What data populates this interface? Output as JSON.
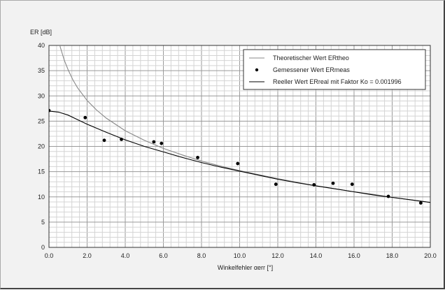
{
  "chart_data": {
    "type": "line",
    "ylabel": "ER [dB]",
    "xlabel": "Winkelfehler αerr [°]",
    "xlim": [
      0,
      20
    ],
    "ylim": [
      0,
      40
    ],
    "x_ticks": [
      "0.0",
      "2.0",
      "4.0",
      "6.0",
      "8.0",
      "10.0",
      "12.0",
      "14.0",
      "16.0",
      "18.0",
      "20.0"
    ],
    "y_ticks": [
      "0",
      "5",
      "10",
      "15",
      "20",
      "25",
      "30",
      "35",
      "40"
    ],
    "grid": true,
    "legend_position": "top-right",
    "legend": [
      "Theoretischer Wert ERtheo",
      "Gemessener Wert ERmeas",
      "Reeller Wert ERreal mit Faktor Ko = 0.001996"
    ],
    "series": [
      {
        "name": "Theoretischer Wert ERtheo",
        "style": "line",
        "color": "#888888",
        "x": [
          0.5,
          0.6,
          0.8,
          1.0,
          1.25,
          1.5,
          2.0,
          2.5,
          3.0,
          4.0,
          5.0,
          6.0,
          7.0,
          8.0,
          9.0,
          10.0,
          11.0,
          12.0,
          13.0,
          14.0,
          15.0,
          16.0,
          17.0,
          18.0,
          19.0,
          20.0
        ],
        "y": [
          41.2,
          39.6,
          37.1,
          35.2,
          33.2,
          31.6,
          29.1,
          27.2,
          25.6,
          23.1,
          21.2,
          19.6,
          18.3,
          17.1,
          16.1,
          15.2,
          14.4,
          13.6,
          12.9,
          12.2,
          11.6,
          11.0,
          10.5,
          9.9,
          9.4,
          8.9
        ]
      },
      {
        "name": "Gemessener Wert ERmeas",
        "style": "points",
        "color": "#000000",
        "x": [
          0.0,
          1.9,
          2.9,
          3.8,
          5.5,
          5.9,
          7.8,
          9.9,
          11.9,
          13.9,
          14.9,
          15.9,
          17.8,
          19.5
        ],
        "y": [
          27.1,
          25.7,
          21.2,
          21.4,
          20.9,
          20.6,
          17.8,
          16.6,
          12.5,
          12.4,
          12.7,
          12.5,
          10.1,
          8.8
        ]
      },
      {
        "name": "Reeller Wert ERreal mit Faktor Ko = 0.001996",
        "style": "line",
        "color": "#000000",
        "x": [
          0.0,
          0.5,
          1.0,
          1.5,
          2.0,
          2.5,
          3.0,
          4.0,
          5.0,
          6.0,
          7.0,
          8.0,
          9.0,
          10.0,
          11.0,
          12.0,
          13.0,
          14.0,
          15.0,
          16.0,
          17.0,
          18.0,
          19.0,
          20.0
        ],
        "y": [
          27.0,
          26.8,
          26.2,
          25.3,
          24.4,
          23.6,
          22.8,
          21.3,
          20.0,
          18.9,
          17.8,
          16.8,
          15.9,
          15.1,
          14.3,
          13.5,
          12.8,
          12.2,
          11.6,
          11.0,
          10.4,
          9.9,
          9.4,
          8.9
        ]
      }
    ]
  }
}
